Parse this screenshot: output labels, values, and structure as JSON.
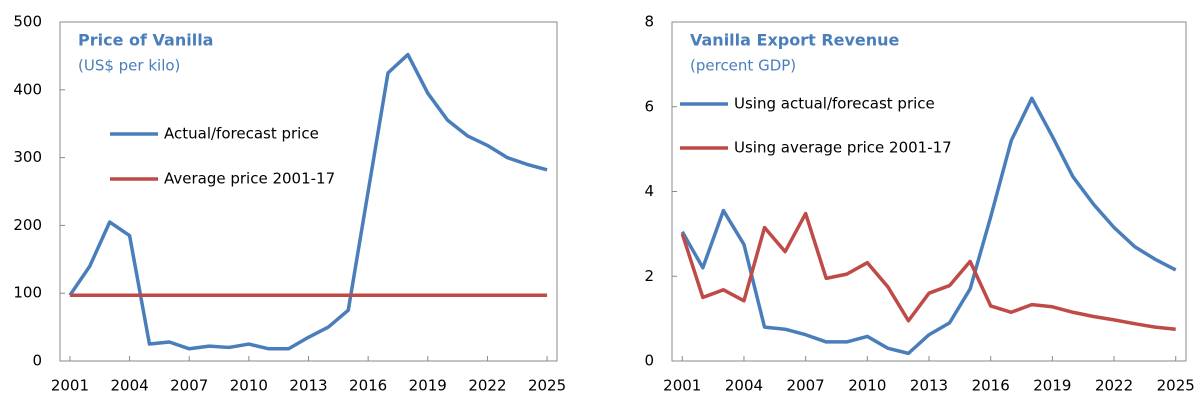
{
  "chart_data": [
    {
      "type": "line",
      "title": "Price of Vanilla",
      "subtitle": "(US$ per kilo)",
      "x": [
        2001,
        2002,
        2003,
        2004,
        2005,
        2006,
        2007,
        2008,
        2009,
        2010,
        2011,
        2012,
        2013,
        2014,
        2015,
        2016,
        2017,
        2018,
        2019,
        2020,
        2021,
        2022,
        2023,
        2024,
        2025
      ],
      "series": [
        {
          "name": "Actual/forecast price",
          "color": "#4a7ebb",
          "values": [
            97,
            140,
            205,
            185,
            25,
            28,
            18,
            22,
            20,
            25,
            18,
            18,
            35,
            50,
            75,
            250,
            425,
            452,
            395,
            355,
            332,
            318,
            300,
            290,
            282
          ]
        },
        {
          "name": "Average price 2001-17",
          "color": "#be4b48",
          "values": [
            97,
            97,
            97,
            97,
            97,
            97,
            97,
            97,
            97,
            97,
            97,
            97,
            97,
            97,
            97,
            97,
            97,
            97,
            97,
            97,
            97,
            97,
            97,
            97,
            97
          ]
        }
      ],
      "xlim": [
        2000.5,
        2025.5
      ],
      "xticks": [
        2001,
        2004,
        2007,
        2010,
        2013,
        2016,
        2019,
        2022,
        2025
      ],
      "ylim": [
        0,
        500
      ],
      "yticks": [
        0,
        100,
        200,
        300,
        400,
        500
      ],
      "grid": false
    },
    {
      "type": "line",
      "title": "Vanilla Export Revenue",
      "subtitle": "(percent GDP)",
      "x": [
        2001,
        2002,
        2003,
        2004,
        2005,
        2006,
        2007,
        2008,
        2009,
        2010,
        2011,
        2012,
        2013,
        2014,
        2015,
        2016,
        2017,
        2018,
        2019,
        2020,
        2021,
        2022,
        2023,
        2024,
        2025
      ],
      "series": [
        {
          "name": "Using actual/forecast price",
          "color": "#4a7ebb",
          "values": [
            3.05,
            2.2,
            3.55,
            2.75,
            0.8,
            0.75,
            0.62,
            0.45,
            0.45,
            0.58,
            0.3,
            0.18,
            0.62,
            0.9,
            1.7,
            3.4,
            5.2,
            6.2,
            5.3,
            4.35,
            3.7,
            3.15,
            2.7,
            2.4,
            2.15
          ]
        },
        {
          "name": "Using average price 2001-17",
          "color": "#be4b48",
          "values": [
            3.0,
            1.5,
            1.68,
            1.42,
            3.15,
            2.58,
            3.48,
            1.95,
            2.05,
            2.32,
            1.75,
            0.95,
            1.6,
            1.78,
            2.35,
            1.3,
            1.15,
            1.33,
            1.28,
            1.15,
            1.05,
            0.97,
            0.88,
            0.8,
            0.75
          ]
        }
      ],
      "xlim": [
        2000.5,
        2025.5
      ],
      "xticks": [
        2001,
        2004,
        2007,
        2010,
        2013,
        2016,
        2019,
        2022,
        2025
      ],
      "ylim": [
        0,
        8
      ],
      "yticks": [
        0,
        2,
        4,
        6,
        8
      ],
      "grid": false
    }
  ]
}
